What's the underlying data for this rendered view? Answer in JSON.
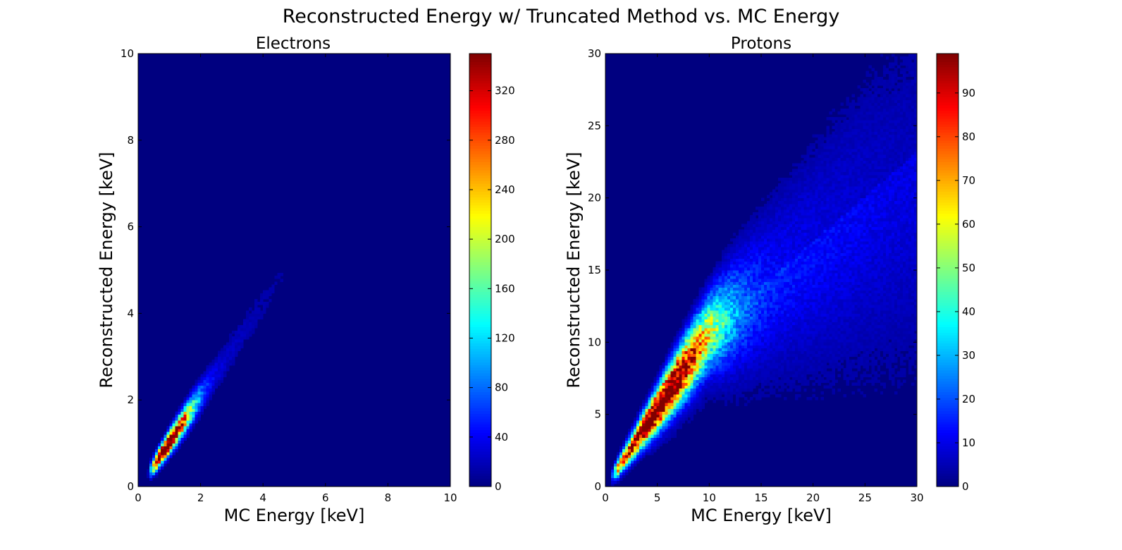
{
  "suptitle": "Reconstructed Energy w/ Truncated Method vs. MC Energy",
  "chart_data": [
    {
      "type": "heatmap",
      "title": "Electrons",
      "xlabel": "MC Energy [keV]",
      "ylabel": "Reconstructed Energy [keV]",
      "xlim": [
        0,
        10
      ],
      "ylim": [
        0,
        10
      ],
      "xticks": [
        "0",
        "2",
        "4",
        "6",
        "8",
        "10"
      ],
      "yticks": [
        "0",
        "2",
        "4",
        "6",
        "8",
        "10"
      ],
      "colormap": "jet",
      "colorbar": {
        "min": 0,
        "max": 350,
        "ticks": [
          "0",
          "40",
          "80",
          "120",
          "160",
          "200",
          "240",
          "280",
          "320"
        ]
      },
      "density": {
        "description_values": "counts per bin along ridge",
        "ridge": [
          {
            "x": 0.4,
            "y": 0.4,
            "count": 150
          },
          {
            "x": 0.8,
            "y": 0.8,
            "count": 340
          },
          {
            "x": 1.2,
            "y": 1.2,
            "count": 330
          },
          {
            "x": 1.6,
            "y": 1.6,
            "count": 250
          },
          {
            "x": 2.0,
            "y": 2.0,
            "count": 180
          },
          {
            "x": 2.5,
            "y": 2.6,
            "count": 110
          },
          {
            "x": 3.0,
            "y": 3.2,
            "count": 70
          },
          {
            "x": 4.0,
            "y": 4.3,
            "count": 40
          },
          {
            "x": 5.0,
            "y": 5.3,
            "count": 28
          },
          {
            "x": 6.0,
            "y": 6.4,
            "count": 16
          },
          {
            "x": 7.0,
            "y": 7.6,
            "count": 8
          }
        ]
      }
    },
    {
      "type": "heatmap",
      "title": "Protons",
      "xlabel": "MC Energy [keV]",
      "ylabel": "Reconstructed Energy [keV]",
      "xlim": [
        0,
        30
      ],
      "ylim": [
        0,
        30
      ],
      "xticks": [
        "0",
        "5",
        "10",
        "15",
        "20",
        "25",
        "30"
      ],
      "yticks": [
        "0",
        "5",
        "10",
        "15",
        "20",
        "25",
        "30"
      ],
      "colormap": "jet",
      "colorbar": {
        "min": 0,
        "max": 99,
        "ticks": [
          "0",
          "10",
          "20",
          "30",
          "40",
          "50",
          "60",
          "70",
          "80",
          "90"
        ]
      },
      "density": {
        "description_values": "counts per bin along ridge",
        "ridge": [
          {
            "x": 1,
            "y": 1,
            "count": 35
          },
          {
            "x": 3,
            "y": 3.2,
            "count": 75
          },
          {
            "x": 5,
            "y": 5.6,
            "count": 95
          },
          {
            "x": 7,
            "y": 7.8,
            "count": 90
          },
          {
            "x": 9,
            "y": 9.8,
            "count": 75
          },
          {
            "x": 11,
            "y": 11.8,
            "count": 55
          },
          {
            "x": 13,
            "y": 13.5,
            "count": 40
          },
          {
            "x": 15,
            "y": 15.5,
            "count": 30
          },
          {
            "x": 18,
            "y": 18,
            "count": 22
          },
          {
            "x": 22,
            "y": 20.5,
            "count": 18
          },
          {
            "x": 26,
            "y": 22,
            "count": 12
          }
        ]
      }
    }
  ]
}
